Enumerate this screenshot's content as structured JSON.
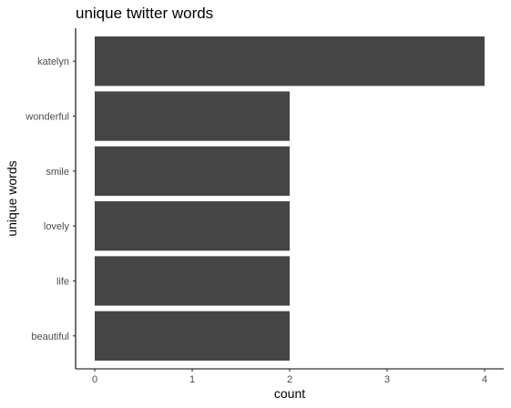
{
  "chart_data": {
    "type": "bar",
    "orientation": "horizontal",
    "title": "unique twitter words",
    "xlabel": "count",
    "ylabel": "unique words",
    "categories": [
      "katelyn",
      "wonderful",
      "smile",
      "lovely",
      "life",
      "beautiful"
    ],
    "values": [
      4,
      2,
      2,
      2,
      2,
      2
    ],
    "xlim": [
      0,
      4
    ],
    "xticks": [
      "0",
      "1",
      "2",
      "3",
      "4"
    ],
    "grid": false,
    "legend": "none",
    "bar_color": "#454545"
  }
}
